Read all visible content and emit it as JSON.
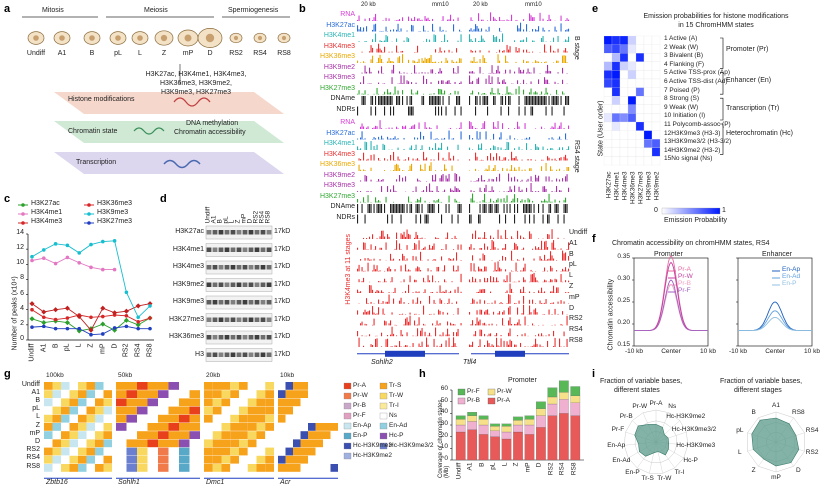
{
  "panels": {
    "a": "a",
    "b": "b",
    "c": "c",
    "d": "d",
    "e": "e",
    "f": "f",
    "g": "g",
    "h": "h",
    "i": "i"
  },
  "panel_a": {
    "groups": [
      "Mitosis",
      "Meiosis",
      "Spermiogenesis"
    ],
    "stages": [
      "Undiff",
      "A1",
      "B",
      "pL",
      "L",
      "Z",
      "mP",
      "D",
      "RS2",
      "RS4",
      "RS8"
    ],
    "marks_text_line1": "H3K27ac, H3K4me1, H3K4me3,",
    "marks_text_line2": "H3K36me3, H3K9me2,",
    "marks_text_line3": "H3K9me3, H3K27me3",
    "layer1": "Histone modifications",
    "layer2": "Chromatin state",
    "layer2_side1": "DNA methylation",
    "layer2_side2": "Chromatin accessibility",
    "layer3": "Transcription"
  },
  "panel_b": {
    "scale_left": "20 kb",
    "scale_left_ref": "mm10",
    "scale_right": "20 kb",
    "scale_right_ref": "mm10",
    "tracks_top": [
      "RNA",
      "H3K27ac",
      "H3K4me1",
      "H3K4me3",
      "H3K36me3",
      "H3K9me2",
      "H3K9me3",
      "H3K27me3",
      "DNAme",
      "NDRs"
    ],
    "tracks_mid": [
      "RNA",
      "H3K27ac",
      "H3K4me1",
      "H3K4me3",
      "H3K36me3",
      "H3K9me2",
      "H3K9me3",
      "H3K27me3",
      "DNAme",
      "NDRs"
    ],
    "track_colors": [
      "#d63fd6",
      "#2a6dd9",
      "#29b3b3",
      "#e83030",
      "#e8a800",
      "#a832a8",
      "#a832a8",
      "#32a832",
      "#222222",
      "#222222"
    ],
    "stage_top": "B stage",
    "stage_mid": "RS4 stage",
    "h3k4me3_label": "H3K4me3 at 11 stages",
    "stages": [
      "Undiff",
      "A1",
      "B",
      "pL",
      "L",
      "Z",
      "mP",
      "D",
      "RS2",
      "RS4",
      "RS8"
    ],
    "gene_left": "Sohlh2",
    "gene_right": "Ttll4"
  },
  "panel_c": {
    "ylabel": "Number of peaks (x10⁴)",
    "legend": [
      {
        "name": "H3K27ac",
        "color": "#2ca02c"
      },
      {
        "name": "H3K36me3",
        "color": "#d62728"
      },
      {
        "name": "H3K4me1",
        "color": "#e377c2"
      },
      {
        "name": "H3K9me3",
        "color": "#17becf"
      },
      {
        "name": "H3K4me3",
        "color": "#d62728"
      },
      {
        "name": "H3K27me3",
        "color": "#1f3fbf"
      }
    ]
  },
  "chart_data": {
    "type": "line",
    "categories": [
      "Undiff",
      "A1",
      "B",
      "pL",
      "L",
      "Z",
      "mP",
      "D",
      "RS2",
      "RS4",
      "RS8"
    ],
    "ylim": [
      0,
      14
    ],
    "yticks": [
      0,
      2,
      4,
      6,
      8,
      10,
      12,
      14
    ],
    "ylabel": "Number of peaks (x10⁴)",
    "series": [
      {
        "name": "H3K27ac",
        "color": "#2ca02c",
        "values": [
          2.8,
          2.3,
          2.5,
          2.3,
          1.2,
          1.5,
          2.1,
          1.3,
          2.6,
          2.0,
          2.9
        ]
      },
      {
        "name": "H3K4me1",
        "color": "#e377c2",
        "values": [
          10.5,
          10.8,
          10.1,
          10.9,
          10.2,
          9.6,
          9.3,
          9.3,
          null,
          null,
          null
        ]
      },
      {
        "name": "H3K4me3",
        "color": "#d62728",
        "values": [
          4.0,
          3.0,
          2.7,
          2.9,
          3.3,
          3.0,
          3.1,
          3.3,
          3.2,
          2.4,
          2.9
        ]
      },
      {
        "name": "H3K36me3",
        "color": "#c02020",
        "values": [
          4.8,
          3.7,
          4.0,
          4.2,
          3.1,
          1.3,
          4.2,
          3.6,
          3.8,
          4.5,
          4.8
        ]
      },
      {
        "name": "H3K9me3",
        "color": "#17becf",
        "values": [
          11.0,
          11.9,
          12.7,
          12.5,
          11.5,
          12.6,
          13.0,
          13.1,
          6.3,
          3.0,
          4.5
        ]
      },
      {
        "name": "H3K27me3",
        "color": "#1f3fbf",
        "values": [
          1.7,
          1.8,
          1.5,
          1.5,
          1.5,
          0.7,
          0.8,
          1.6,
          1.8,
          1.5,
          1.5
        ]
      }
    ]
  },
  "panel_d": {
    "lanes": [
      "Undiff",
      "A1",
      "B",
      "pL",
      "L",
      "Z",
      "mP",
      "D",
      "RS2",
      "RS4",
      "RS8"
    ],
    "rows": [
      "H3K27ac",
      "H3K4me1",
      "H3K4me3",
      "H3K9me2",
      "H3K9me3",
      "H3K27me3",
      "H3K36me3",
      "H3"
    ],
    "size": "17kD"
  },
  "panel_e": {
    "title_line1": "Emission probabilities for histone modifications",
    "title_line2": "in 15 ChromHMM states",
    "ylabel": "State (User order)",
    "states": [
      "1  Active (A)",
      "2  Weak (W)",
      "3  Bivalent (B)",
      "4  Flanking (F)",
      "5  Active TSS-prox (Ap)",
      "6  Active TSS-dist (Ad)",
      "7  Poised (P)",
      "8  Strong (S)",
      "9  Weak (W)",
      "10 Initiation (I)",
      "11 Polycomb-assoc (P)",
      "12H3K9me3 (H3-3)",
      "13H3K9me3/2 (H3-3/2)",
      "14H3K9me2 (H3-2)",
      "15No signal (Ns)"
    ],
    "groups": [
      "Promoter (Pr)",
      "Enhancer (En)",
      "Transcription (Tr)",
      "Heterochromatin (Hc)"
    ],
    "marks": [
      "H3K27ac",
      "H3K4me1",
      "H3K4me3",
      "H3K36me3",
      "H3K27me3",
      "H3K9me3",
      "H3K9me2"
    ],
    "colorbar_min": "0",
    "colorbar_max": "1",
    "colorbar_label": "Emission Probability",
    "matrix": [
      [
        1.0,
        0.9,
        0.95,
        0.2,
        0.0,
        0.0,
        0.0
      ],
      [
        0.7,
        0.8,
        0.6,
        0.1,
        0.0,
        0.0,
        0.0
      ],
      [
        0.0,
        0.3,
        0.9,
        0.0,
        0.9,
        0.0,
        0.0
      ],
      [
        0.3,
        0.9,
        0.2,
        0.1,
        0.0,
        0.0,
        0.0
      ],
      [
        0.9,
        1.0,
        0.0,
        0.2,
        0.0,
        0.0,
        0.0
      ],
      [
        0.8,
        0.9,
        0.0,
        0.0,
        0.0,
        0.0,
        0.0
      ],
      [
        0.0,
        0.9,
        0.0,
        0.0,
        0.6,
        0.0,
        0.0
      ],
      [
        0.0,
        0.2,
        0.0,
        1.0,
        0.0,
        0.0,
        0.0
      ],
      [
        0.0,
        0.0,
        0.0,
        0.5,
        0.0,
        0.0,
        0.0
      ],
      [
        0.1,
        0.6,
        0.5,
        0.7,
        0.0,
        0.0,
        0.0
      ],
      [
        0.0,
        0.1,
        0.0,
        0.0,
        0.9,
        0.0,
        0.0
      ],
      [
        0.0,
        0.0,
        0.0,
        0.0,
        0.0,
        1.0,
        0.0
      ],
      [
        0.0,
        0.0,
        0.0,
        0.0,
        0.0,
        0.6,
        0.7
      ],
      [
        0.0,
        0.0,
        0.0,
        0.0,
        0.0,
        0.0,
        0.9
      ],
      [
        0.0,
        0.0,
        0.0,
        0.0,
        0.0,
        0.0,
        0.0
      ]
    ]
  },
  "panel_f": {
    "title": "Chromatin accessibility on chromHMM states, RS4",
    "ylabel": "Chromatin accessibility",
    "left_title": "Promoter",
    "right_title": "Enhancer",
    "left_legend": [
      "Pr-A",
      "Pr-W",
      "Pr-B",
      "Pr-F"
    ],
    "right_legend": [
      "En-Ap",
      "En-Ad",
      "En-P"
    ],
    "yticks": [
      "0.15",
      "0.20",
      "0.25",
      "0.30",
      "0.35"
    ],
    "xticks": [
      "-10 kb",
      "Center",
      "10 kb"
    ]
  },
  "panel_g": {
    "scales": [
      "100kb",
      "50kb",
      "20kb",
      "10kb"
    ],
    "genes": [
      "Zbtb16",
      "Sohlh1",
      "Dmc1",
      "Acr"
    ],
    "stages": [
      "Undiff",
      "A1",
      "B",
      "pL",
      "L",
      "Z",
      "mP",
      "D",
      "RS2",
      "RS4",
      "RS8"
    ],
    "legend": [
      {
        "name": "Pr-A",
        "color": "#e8401c"
      },
      {
        "name": "Tr-S",
        "color": "#f7a21b"
      },
      {
        "name": "Pr-W",
        "color": "#f07a4a"
      },
      {
        "name": "Tr-W",
        "color": "#f9d860"
      },
      {
        "name": "Pr-B",
        "color": "#c9a7c9"
      },
      {
        "name": "Tr-I",
        "color": "#fbe99a"
      },
      {
        "name": "Pr-F",
        "color": "#e0a0c0"
      },
      {
        "name": "Ns",
        "color": "#ffffff"
      },
      {
        "name": "En-Ap",
        "color": "#c8e6f0"
      },
      {
        "name": "En-Ad",
        "color": "#90d0e0"
      },
      {
        "name": "En-P",
        "color": "#58a8c8"
      },
      {
        "name": "Hc-P",
        "color": "#8a4fb0"
      },
      {
        "name": "Hc-H3K9me3",
        "color": "#3a4fb0"
      },
      {
        "name": "Hc-H3K9me3/2",
        "color": "#6a7fd0"
      },
      {
        "name": "Hc-H3K9me2",
        "color": "#a0b0e0"
      }
    ]
  },
  "panel_h": {
    "title": "Promoter",
    "ylabel": "Coverage of chromatin states (Mb)",
    "legend": [
      "Pr-F",
      "Pr-W",
      "Pr-B",
      "Pr-A"
    ],
    "yticks": [
      "0",
      "10",
      "20",
      "30",
      "40",
      "50",
      "60"
    ],
    "stages": [
      "Undiff",
      "A1",
      "B",
      "pL",
      "L",
      "Z",
      "mP",
      "D",
      "RS2",
      "RS4",
      "RS8"
    ],
    "stack": {
      "Pr-A": [
        24,
        26,
        22,
        20,
        18,
        24,
        22,
        28,
        38,
        40,
        38
      ],
      "Pr-B": [
        6,
        7,
        8,
        5,
        6,
        6,
        8,
        10,
        10,
        12,
        11
      ],
      "Pr-W": [
        5,
        5,
        5,
        4,
        5,
        4,
        5,
        6,
        6,
        6,
        6
      ],
      "Pr-F": [
        3,
        3,
        3,
        2,
        2,
        3,
        3,
        6,
        8,
        10,
        8
      ]
    }
  },
  "panel_i": {
    "left_title_line1": "Fraction of variable bases,",
    "left_title_line2": "different states",
    "right_title_line1": "Fraction of variable bases,",
    "right_title_line2": "different stages",
    "left_axes": [
      "Pr-A",
      "Ns",
      "Hc-H3K9me2",
      "Hc-H3K9me3/2",
      "Hc-H3K9me3",
      "Hc-P",
      "Tr-I",
      "Tr-W",
      "Tr-S",
      "En-P",
      "En-Ad",
      "En-Ap",
      "Pr-F",
      "Pr-B",
      "Pr-W"
    ],
    "left_values": [
      0.55,
      0.5,
      0.35,
      0.4,
      0.4,
      0.45,
      0.5,
      0.3,
      0.35,
      0.55,
      0.6,
      0.55,
      0.7,
      0.75,
      0.6
    ],
    "right_axes": [
      "A1",
      "RS8",
      "RS4",
      "RS2",
      "D",
      "mP",
      "Z",
      "L",
      "pL",
      "B"
    ],
    "right_values": [
      0.8,
      0.75,
      0.7,
      0.8,
      0.85,
      0.8,
      0.7,
      0.8,
      0.85,
      0.9
    ]
  }
}
